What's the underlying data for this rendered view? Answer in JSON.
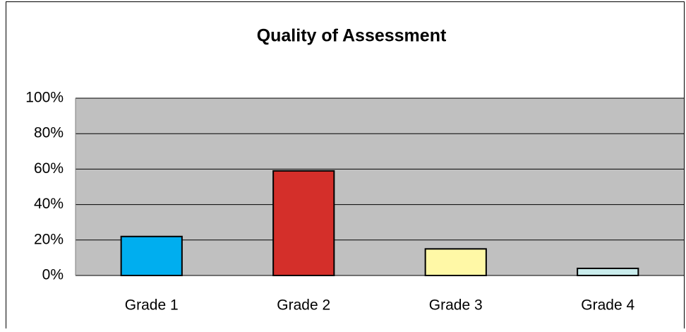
{
  "chart_data": {
    "type": "bar",
    "title": "Quality of Assessment",
    "categories": [
      "Grade 1",
      "Grade 2",
      "Grade 3",
      "Grade 4"
    ],
    "values": [
      22,
      59,
      15,
      4
    ],
    "colors": [
      "#00aeef",
      "#d42f2a",
      "#fff8a6",
      "#c9ecec"
    ],
    "ylim": [
      0,
      100
    ],
    "yticks": [
      {
        "value": 0,
        "label": "0%"
      },
      {
        "value": 20,
        "label": "20%"
      },
      {
        "value": 40,
        "label": "40%"
      },
      {
        "value": 60,
        "label": "60%"
      },
      {
        "value": 80,
        "label": "80%"
      },
      {
        "value": 100,
        "label": "100%"
      }
    ],
    "grid": true
  }
}
